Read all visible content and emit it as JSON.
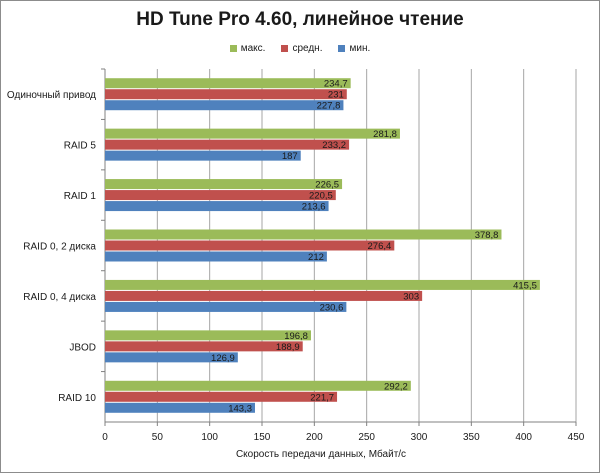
{
  "chart_data": {
    "type": "bar",
    "orientation": "horizontal",
    "title": "HD Tune Pro 4.60, линейное чтение",
    "xlabel": "Скорость передачи данных, Мбайт/с",
    "ylabel": "",
    "xlim": [
      0,
      450
    ],
    "xticks": [
      "0",
      "50",
      "100",
      "150",
      "200",
      "250",
      "300",
      "350",
      "400",
      "450"
    ],
    "grid": true,
    "legend_position": "top",
    "categories": [
      "Одиночный привод",
      "RAID 5",
      "RAID 1",
      "RAID 0, 2 диска",
      "RAID 0, 4 диска",
      "JBOD",
      "RAID 10"
    ],
    "series": [
      {
        "name": "макс.",
        "color": "#9bbb59",
        "values": [
          234.7,
          281.8,
          226.5,
          378.8,
          415.5,
          196.8,
          292.2
        ],
        "labels": [
          "234,7",
          "281,8",
          "226,5",
          "378,8",
          "415,5",
          "196,8",
          "292,2"
        ]
      },
      {
        "name": "средн.",
        "color": "#c0504d",
        "values": [
          231,
          233.2,
          220.5,
          276.4,
          303,
          188.9,
          221.7
        ],
        "labels": [
          "231",
          "233,2",
          "220,5",
          "276,4",
          "303",
          "188,9",
          "221,7"
        ]
      },
      {
        "name": "мин.",
        "color": "#4f81bd",
        "values": [
          227.8,
          187,
          213.6,
          212,
          230.6,
          126.9,
          143.3
        ],
        "labels": [
          "227,8",
          "187",
          "213,6",
          "212",
          "230,6",
          "126,9",
          "143,3"
        ]
      }
    ]
  }
}
